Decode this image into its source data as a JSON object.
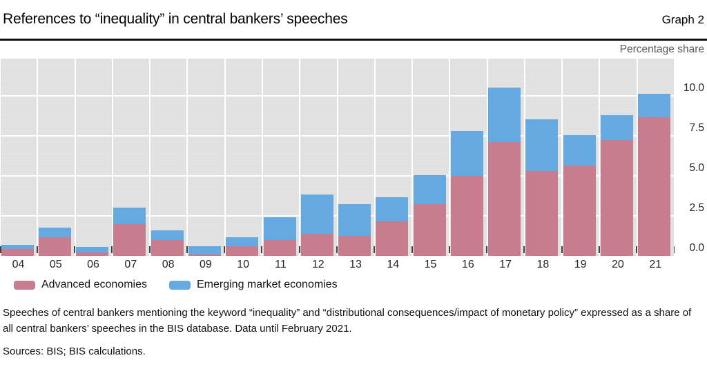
{
  "header": {
    "title": "References to “inequality” in central bankers’ speeches",
    "graph_label": "Graph 2"
  },
  "axis": {
    "unit_label": "Percentage share"
  },
  "chart_data": {
    "type": "bar",
    "stacked": true,
    "title": "References to “inequality” in central bankers’ speeches",
    "categories": [
      "04",
      "05",
      "06",
      "07",
      "08",
      "09",
      "10",
      "11",
      "12",
      "13",
      "14",
      "15",
      "16",
      "17",
      "18",
      "19",
      "20",
      "21"
    ],
    "series": [
      {
        "name": "Advanced economies",
        "color": "#c87d8e",
        "values": [
          0.45,
          1.15,
          0.2,
          2.0,
          1.0,
          0.1,
          0.6,
          1.0,
          1.4,
          1.25,
          2.15,
          3.25,
          5.0,
          7.1,
          5.3,
          5.65,
          7.25,
          8.65
        ]
      },
      {
        "name": "Emerging market economies",
        "color": "#64aae1",
        "values": [
          0.25,
          0.6,
          0.35,
          1.0,
          0.6,
          0.5,
          0.55,
          1.4,
          2.45,
          2.0,
          1.5,
          1.8,
          2.8,
          3.4,
          3.25,
          1.9,
          1.55,
          1.5
        ]
      }
    ],
    "xlabel": "",
    "ylabel": "Percentage share",
    "yticks": [
      0,
      2.5,
      5,
      7.5,
      10
    ],
    "ytick_labels": [
      "0.0",
      "2.5",
      "5.0",
      "7.5",
      "10.0"
    ],
    "ylim": [
      0,
      12.3
    ],
    "grid": true,
    "gridline_color": "#ffffff",
    "plot_background": "#e2e2e2",
    "legend_position": "below-left"
  },
  "legend": {
    "items": [
      {
        "label": "Advanced economies",
        "color": "#c87d8e"
      },
      {
        "label": "Emerging market economies",
        "color": "#64aae1"
      }
    ]
  },
  "footnote": "Speeches of central bankers mentioning the keyword “inequality” and “distributional consequences/impact of monetary policy” expressed as a share of all central bankers’ speeches in the BIS database. Data until February 2021.",
  "sources": "Sources: BIS; BIS calculations."
}
